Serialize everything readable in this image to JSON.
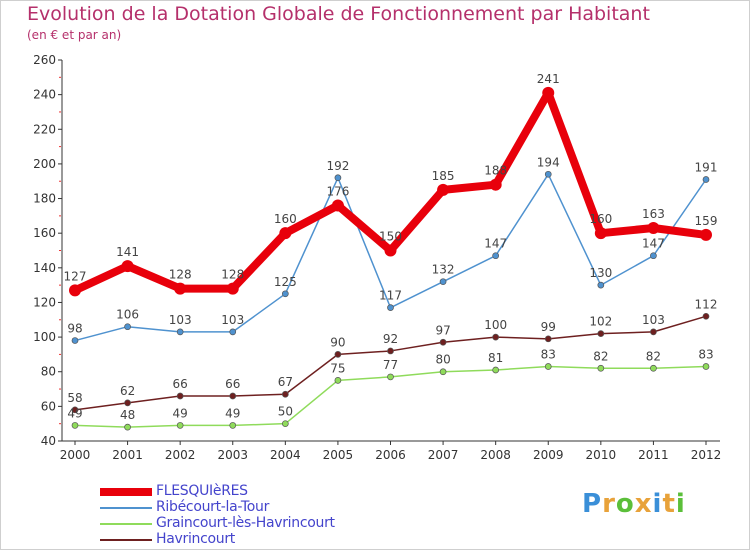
{
  "title": "Evolution de la Dotation Globale de Fonctionnement par Habitant",
  "subtitle": "(en € et par an)",
  "brand": {
    "letters": [
      "P",
      "r",
      "o",
      "x",
      "i",
      "t",
      "i"
    ],
    "colors": [
      "#3a8fd8",
      "#e8a23a",
      "#5bbf3a",
      "#e8a23a",
      "#3a8fd8",
      "#e8a23a",
      "#5bbf3a"
    ]
  },
  "chart_data": {
    "type": "line",
    "title": "Evolution de la Dotation Globale de Fonctionnement par Habitant",
    "subtitle": "(en € et par an)",
    "x": [
      "2000",
      "2001",
      "2002",
      "2003",
      "2004",
      "2005",
      "2006",
      "2007",
      "2008",
      "2009",
      "2010",
      "2011",
      "2012"
    ],
    "ylim": [
      40,
      260
    ],
    "yticks": [
      "40",
      "60",
      "80",
      "100",
      "120",
      "140",
      "160",
      "180",
      "200",
      "220",
      "240",
      "260"
    ],
    "grid": false,
    "legend_position": "bottom-left",
    "series": [
      {
        "name": "FLESQUIèRES",
        "color": "#e8000b",
        "values": [
          127,
          141,
          128,
          128,
          160,
          176,
          150,
          185,
          188,
          241,
          160,
          163,
          159
        ]
      },
      {
        "name": "Ribécourt-la-Tour",
        "color": "#4f92cf",
        "values": [
          98,
          106,
          103,
          103,
          125,
          192,
          117,
          132,
          147,
          194,
          130,
          147,
          191
        ]
      },
      {
        "name": "Graincourt-lès-Havrincourt",
        "color": "#8fdb5b",
        "values": [
          49,
          48,
          49,
          49,
          50,
          75,
          77,
          80,
          81,
          83,
          82,
          82,
          83
        ]
      },
      {
        "name": "Havrincourt",
        "color": "#6e2020",
        "values": [
          58,
          62,
          66,
          66,
          67,
          90,
          92,
          97,
          100,
          99,
          102,
          103,
          112
        ]
      }
    ]
  }
}
